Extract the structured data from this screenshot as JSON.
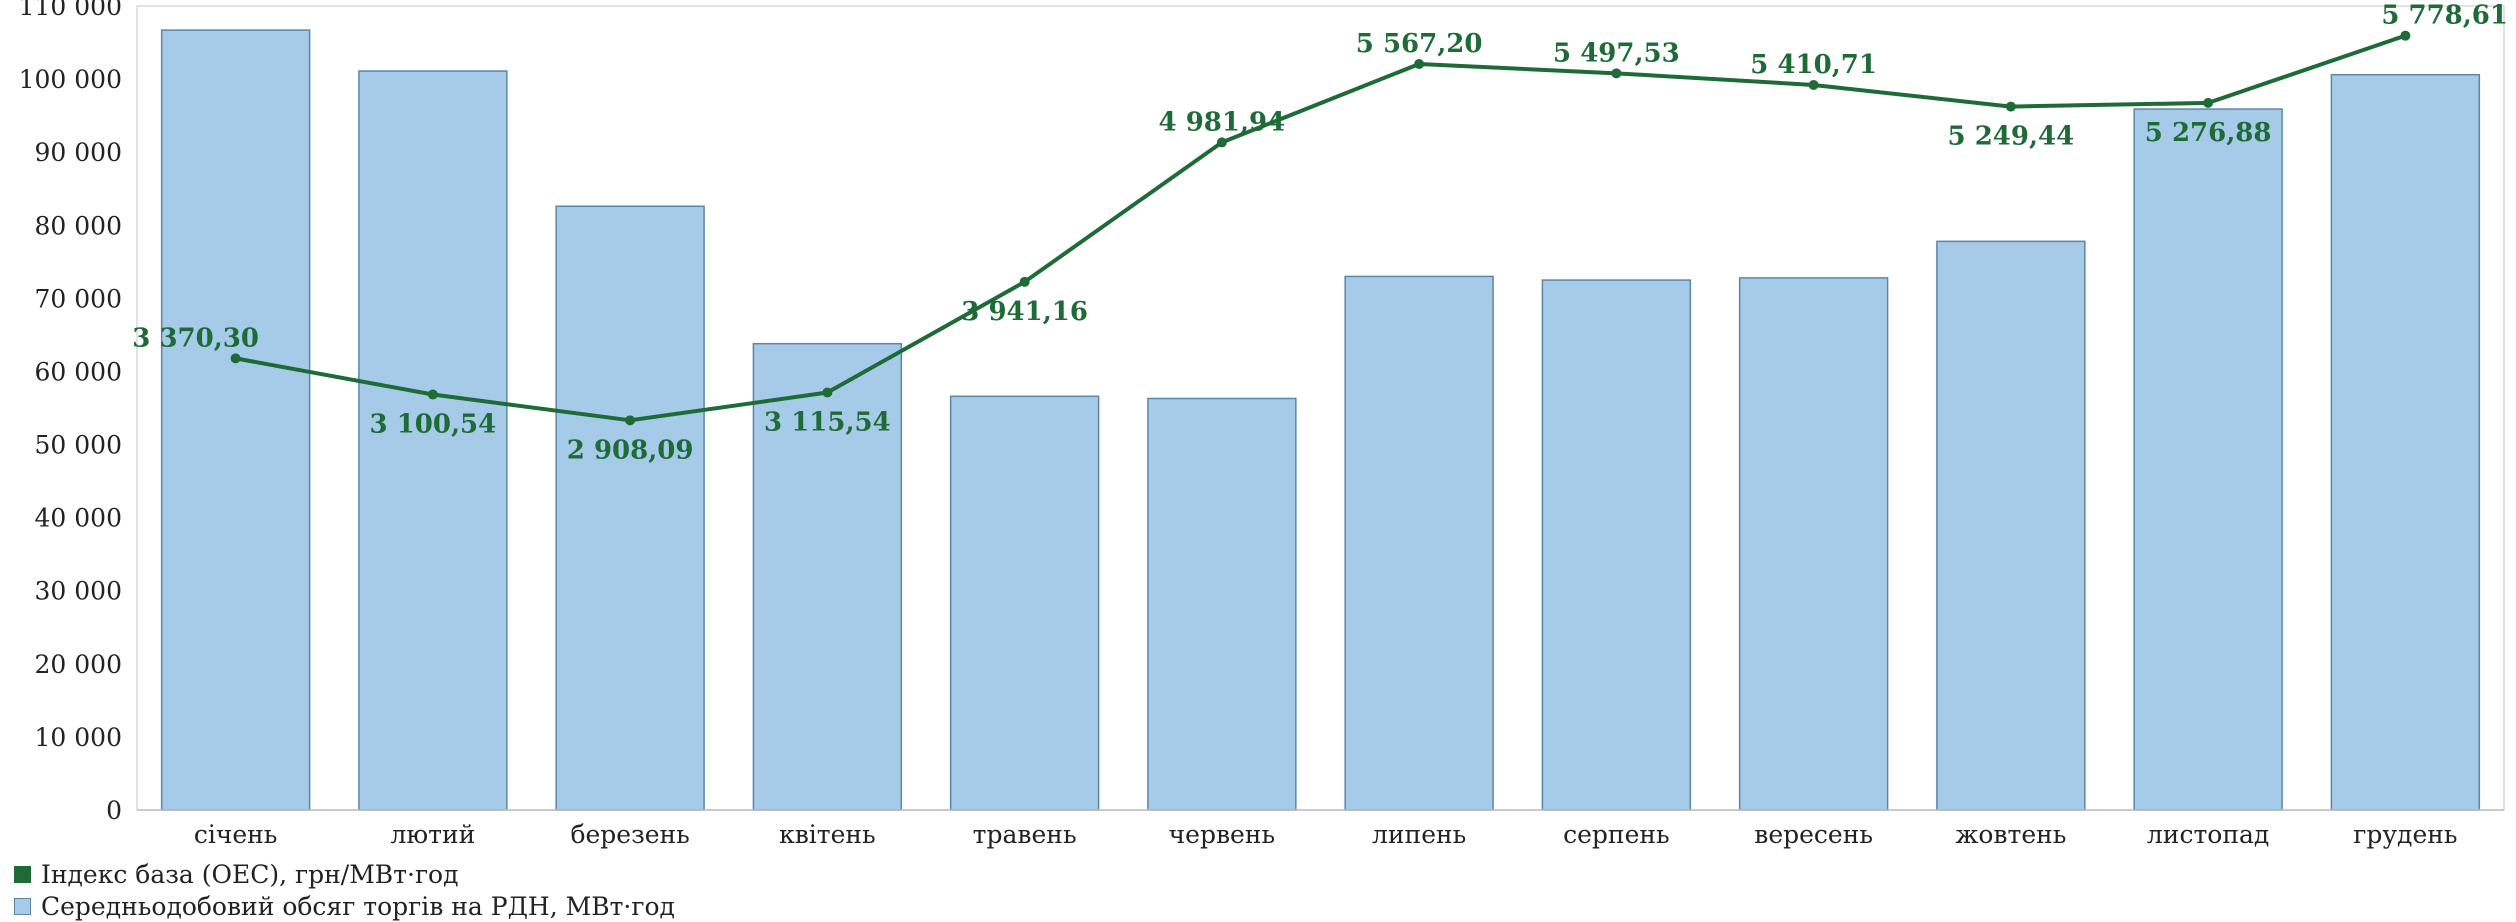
{
  "chart_data": {
    "type": "bar",
    "categories": [
      "січень",
      "лютий",
      "березень",
      "квітень",
      "травень",
      "червень",
      "липень",
      "серпень",
      "вересень",
      "жовтень",
      "листопад",
      "грудень"
    ],
    "ylim": [
      0,
      110000
    ],
    "yticks": [
      0,
      10000,
      20000,
      30000,
      40000,
      50000,
      60000,
      70000,
      80000,
      90000,
      100000,
      110000
    ],
    "ytick_labels": [
      "0",
      "10 000",
      "20 000",
      "30 000",
      "40 000",
      "50 000",
      "60 000",
      "70 000",
      "80 000",
      "90 000",
      "100 000",
      "110 000"
    ],
    "grid": false,
    "legend_position": "bottom-left",
    "series": [
      {
        "name": "Середньодобовий обсяг торгів на РДН, МВт·год",
        "kind": "bar",
        "color": "#a6cbe8",
        "border": "#5b86a8",
        "values": [
          106700,
          101100,
          82600,
          63800,
          56600,
          56300,
          73000,
          72500,
          72800,
          77800,
          95900,
          100600
        ]
      },
      {
        "name": "Індекс база (ОЕС), грн/МВт·год",
        "kind": "line",
        "color": "#1e6b38",
        "values": [
          3370.3,
          3100.54,
          2908.09,
          3115.54,
          3941.16,
          4981.94,
          5567.2,
          5497.53,
          5410.71,
          5249.44,
          5276.88,
          5778.61
        ],
        "labels": [
          "3 370,30",
          "3 100,54",
          "2 908,09",
          "3 115,54",
          "3 941,16",
          "4 981,94",
          "5 567,20",
          "5 497,53",
          "5 410,71",
          "5 249,44",
          "5 276,88",
          "5 778,61"
        ],
        "label_side": [
          "above",
          "below",
          "below",
          "below",
          "below",
          "above",
          "above",
          "above",
          "above",
          "below",
          "below",
          "above"
        ],
        "secondary_axis_range": [
          0,
          6000
        ]
      }
    ]
  }
}
